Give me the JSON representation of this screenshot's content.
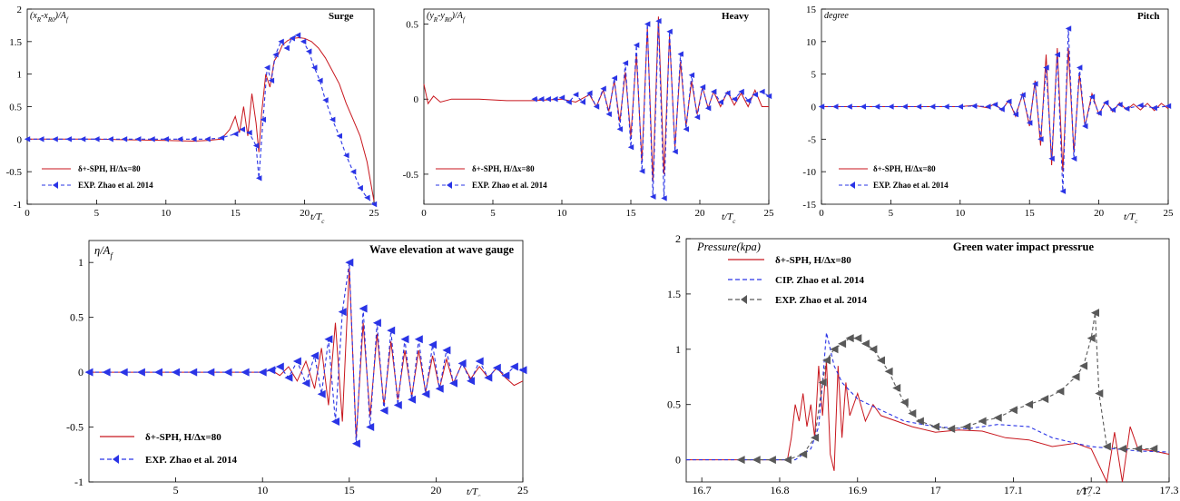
{
  "colors": {
    "sph": "#c8161d",
    "exp": "#2a34e6",
    "cip": "#2a34e6",
    "exp_gray": "#595959"
  },
  "chart_data": [
    {
      "type": "line",
      "title": "Surge",
      "ylabel": "(x_R-x_R0)/A_f",
      "xlabel": "t/T_c",
      "xlim": [
        0,
        25
      ],
      "ylim": [
        -1,
        2
      ],
      "xticks": [
        0,
        5,
        10,
        15,
        20,
        25
      ],
      "yticks": [
        -1,
        -0.5,
        0,
        0.5,
        1,
        1.5,
        2
      ],
      "legend_position": "bottom-left",
      "series": [
        {
          "name": "δ+-SPH, H/Δx=80",
          "style": "solid",
          "color": "#c8161d",
          "x": [
            0,
            5,
            10,
            12,
            13,
            14,
            14.6,
            15,
            15.3,
            15.6,
            15.9,
            16.2,
            16.5,
            16.7,
            16.9,
            17.2,
            17.5,
            17.8,
            18.1,
            18.4,
            18.8,
            19.2,
            19.6,
            20,
            20.5,
            21,
            21.5,
            22,
            22.5,
            23,
            23.5,
            24,
            24.5,
            25
          ],
          "y": [
            0,
            0,
            -0.02,
            -0.03,
            -0.02,
            0,
            0.15,
            0.35,
            0.1,
            0.5,
            0.05,
            0.7,
            0.25,
            -0.2,
            0.4,
            1.0,
            0.8,
            1.2,
            1.3,
            1.45,
            1.52,
            1.55,
            1.56,
            1.55,
            1.5,
            1.4,
            1.25,
            1.05,
            0.85,
            0.55,
            0.3,
            0.05,
            -0.35,
            -0.95
          ]
        },
        {
          "name": "EXP. Zhao et al. 2014",
          "style": "dash-triangle",
          "color": "#2a34e6",
          "x": [
            0,
            1,
            2,
            3,
            4,
            5,
            6,
            7,
            8,
            9,
            10,
            11,
            12,
            13,
            14,
            15,
            15.5,
            16,
            16.5,
            16.7,
            17,
            17.3,
            17.6,
            17.9,
            18.3,
            18.7,
            19.1,
            19.5,
            19.9,
            20.3,
            20.7,
            21.1,
            21.5,
            22,
            22.5,
            23,
            23.5,
            24,
            24.5,
            25
          ],
          "y": [
            0,
            0,
            0,
            0,
            0,
            0,
            0,
            0,
            0,
            0,
            0,
            0,
            0,
            0,
            0.02,
            0.08,
            0.15,
            0.1,
            -0.1,
            -0.6,
            0.3,
            1.1,
            0.9,
            1.3,
            1.5,
            1.4,
            1.55,
            1.6,
            1.5,
            1.35,
            1.1,
            0.9,
            0.6,
            0.3,
            0.05,
            -0.25,
            -0.5,
            -0.75,
            -0.9,
            -1.0
          ]
        }
      ]
    },
    {
      "type": "line",
      "title": "Heavy",
      "ylabel": "(y_R-y_R0)/A_f",
      "xlabel": "t/T_c",
      "xlim": [
        0,
        25
      ],
      "ylim": [
        -0.7,
        0.6
      ],
      "xticks": [
        0,
        5,
        10,
        15,
        20,
        25
      ],
      "yticks": [
        -0.5,
        0,
        0.5
      ],
      "legend_position": "bottom-left",
      "series": [
        {
          "name": "δ+-SPH, H/Δx=80",
          "style": "solid",
          "color": "#c8161d",
          "x": [
            0,
            0.3,
            0.7,
            1.2,
            2,
            4,
            6,
            8,
            10,
            11,
            12,
            12.5,
            13,
            13.4,
            13.8,
            14.2,
            14.6,
            15,
            15.4,
            15.8,
            16.2,
            16.6,
            17,
            17.4,
            17.8,
            18.2,
            18.6,
            19,
            19.4,
            19.8,
            20.2,
            20.6,
            21,
            21.5,
            22,
            22.5,
            23,
            23.5,
            24,
            24.5,
            25
          ],
          "y": [
            0.1,
            -0.03,
            0.02,
            -0.02,
            0,
            0,
            -0.01,
            -0.01,
            0,
            -0.02,
            0.03,
            -0.05,
            0.06,
            -0.08,
            0.12,
            -0.15,
            0.18,
            -0.25,
            0.3,
            -0.42,
            0.48,
            -0.55,
            0.55,
            -0.5,
            0.42,
            -0.32,
            0.25,
            -0.18,
            0.12,
            -0.1,
            0.08,
            -0.06,
            0.05,
            -0.05,
            0.05,
            -0.04,
            0.04,
            -0.05,
            0.06,
            -0.05,
            -0.05
          ]
        },
        {
          "name": "EXP. Zhao et al. 2014",
          "style": "dash-triangle",
          "color": "#2a34e6",
          "x": [
            8,
            8.5,
            9,
            9.5,
            10,
            10.5,
            11,
            11.5,
            12,
            12.5,
            13,
            13.4,
            13.8,
            14.2,
            14.6,
            15,
            15.4,
            15.8,
            16.2,
            16.6,
            17,
            17.4,
            17.8,
            18.2,
            18.6,
            19,
            19.4,
            19.8,
            20.2,
            20.6,
            21,
            21.5,
            22,
            22.5,
            23,
            23.5,
            24,
            24.5,
            25
          ],
          "y": [
            0,
            0,
            0,
            0,
            0.01,
            -0.02,
            0.03,
            -0.02,
            0.04,
            -0.05,
            0.07,
            -0.1,
            0.14,
            -0.2,
            0.24,
            -0.32,
            0.36,
            -0.48,
            0.5,
            -0.65,
            0.52,
            -0.66,
            0.45,
            -0.35,
            0.3,
            -0.2,
            0.16,
            -0.12,
            0.08,
            -0.06,
            0.05,
            -0.02,
            0.04,
            0,
            0.05,
            -0.01,
            0.03,
            0.05,
            0.02
          ]
        }
      ]
    },
    {
      "type": "line",
      "title": "Pitch",
      "ylabel": "degree",
      "xlabel": "t/T_c",
      "xlim": [
        0,
        25
      ],
      "ylim": [
        -15,
        15
      ],
      "xticks": [
        0,
        5,
        10,
        15,
        20,
        25
      ],
      "yticks": [
        -15,
        -10,
        -5,
        0,
        5,
        10,
        15
      ],
      "legend_position": "bottom-left",
      "series": [
        {
          "name": "δ+-SPH, H/Δx=80",
          "style": "solid",
          "color": "#c8161d",
          "x": [
            0,
            2,
            4,
            6,
            8,
            10,
            11,
            12,
            12.5,
            13,
            13.5,
            14,
            14.5,
            15,
            15.4,
            15.8,
            16.2,
            16.6,
            17,
            17.4,
            17.8,
            18.2,
            18.6,
            19,
            19.5,
            20,
            20.5,
            21,
            21.5,
            22,
            22.5,
            23,
            23.5,
            24,
            24.5,
            25
          ],
          "y": [
            0,
            0,
            0,
            0,
            0,
            0,
            0.2,
            -0.2,
            0.5,
            -0.6,
            1,
            -1.5,
            2,
            -3,
            4,
            -6,
            8,
            -9,
            9,
            -10,
            9,
            -7,
            5,
            -3,
            2,
            -1.2,
            0.8,
            -0.8,
            0.6,
            -0.5,
            0.4,
            -0.5,
            0.5,
            -0.6,
            0.5,
            -0.3
          ]
        },
        {
          "name": "EXP. Zhao et al. 2014",
          "style": "dash-triangle",
          "color": "#2a34e6",
          "x": [
            0,
            1,
            2,
            3,
            4,
            5,
            6,
            7,
            8,
            9,
            10,
            11,
            12,
            12.5,
            13,
            13.5,
            14,
            14.5,
            15,
            15.4,
            15.8,
            16.2,
            16.6,
            17,
            17.4,
            17.8,
            18.2,
            18.6,
            19,
            19.5,
            20,
            20.5,
            21,
            21.5,
            22,
            23,
            24,
            25
          ],
          "y": [
            0,
            0,
            0,
            0,
            0,
            0,
            0,
            0,
            0,
            0,
            0,
            0.1,
            0,
            0.3,
            -0.4,
            0.8,
            -1.2,
            1.8,
            -2.5,
            3.5,
            -5,
            6,
            -8,
            8,
            -13,
            12,
            -8,
            6,
            -3,
            1.5,
            -1,
            0.6,
            -0.5,
            0.3,
            -0.3,
            0.2,
            -0.2,
            0.1
          ]
        }
      ]
    },
    {
      "type": "line",
      "title": "Wave elevation at wave gauge",
      "ylabel": "η/A_f",
      "xlabel": "t/T_c",
      "xlim": [
        0,
        25
      ],
      "ylim": [
        -1,
        1.2
      ],
      "xticks": [
        5,
        10,
        15,
        20,
        25
      ],
      "yticks": [
        -1,
        -0.5,
        0,
        0.5,
        1
      ],
      "legend_position": "bottom-left",
      "series": [
        {
          "name": "δ+-SPH, H/Δx=80",
          "style": "solid",
          "color": "#c8161d",
          "x": [
            0,
            2,
            4,
            6,
            8,
            10,
            10.5,
            11,
            11.5,
            12,
            12.5,
            13,
            13.4,
            13.8,
            14.2,
            14.6,
            15,
            15.4,
            15.8,
            16.2,
            16.6,
            17,
            17.4,
            17.8,
            18.2,
            18.6,
            19,
            19.4,
            19.8,
            20.2,
            20.6,
            21,
            21.5,
            22,
            22.5,
            23,
            23.5,
            24,
            24.5,
            25
          ],
          "y": [
            0,
            0,
            0,
            0,
            0,
            0,
            0.02,
            -0.03,
            0.05,
            -0.08,
            0.1,
            -0.15,
            0.22,
            -0.3,
            0.45,
            -0.45,
            0.95,
            -0.6,
            0.45,
            -0.4,
            0.35,
            -0.3,
            0.28,
            -0.25,
            0.2,
            -0.22,
            0.2,
            -0.18,
            0.15,
            -0.15,
            0.12,
            -0.1,
            0.08,
            -0.06,
            0.05,
            -0.05,
            0.04,
            -0.05,
            -0.12,
            -0.08
          ]
        },
        {
          "name": "EXP. Zhao et al. 2014",
          "style": "dash-triangle",
          "color": "#2a34e6",
          "x": [
            0,
            1,
            2,
            3,
            4,
            5,
            6,
            7,
            8,
            9,
            10,
            10.5,
            11,
            11.5,
            12,
            12.5,
            13,
            13.4,
            13.8,
            14.2,
            14.6,
            15,
            15.4,
            15.8,
            16.2,
            16.6,
            17,
            17.4,
            17.8,
            18.2,
            18.6,
            19,
            19.4,
            19.8,
            20.2,
            20.6,
            21,
            21.5,
            22,
            22.5,
            23,
            23.5,
            24,
            24.5,
            25
          ],
          "y": [
            0,
            0,
            0,
            0,
            0,
            0,
            0,
            0,
            0,
            0,
            0,
            0.02,
            0.05,
            -0.05,
            0.1,
            -0.1,
            0.15,
            -0.2,
            0.3,
            -0.45,
            0.55,
            1.0,
            -0.65,
            0.58,
            -0.5,
            0.45,
            -0.35,
            0.38,
            -0.3,
            0.3,
            -0.25,
            0.3,
            -0.2,
            0.25,
            -0.15,
            0.2,
            -0.1,
            0.08,
            -0.08,
            0.1,
            -0.05,
            0.04,
            -0.03,
            0.05,
            0.02
          ]
        }
      ]
    },
    {
      "type": "line",
      "title": "Green water impact pressrue",
      "ylabel": "Pressure(kpa)",
      "xlabel": "t/T_c",
      "xlim": [
        16.68,
        17.3
      ],
      "ylim": [
        -0.2,
        2
      ],
      "xticks": [
        16.7,
        16.8,
        16.9,
        17,
        17.1,
        17.2,
        17.3
      ],
      "xtick_labels": [
        "16.7",
        "16.8",
        "16.9",
        "17",
        "17.1",
        "17.2",
        "17.3"
      ],
      "yticks": [
        0,
        0.5,
        1,
        1.5,
        2
      ],
      "legend_position": "top-left",
      "series": [
        {
          "name": "δ+-SPH, H/Δx=80",
          "style": "solid",
          "color": "#c8161d",
          "x": [
            16.68,
            16.81,
            16.815,
            16.82,
            16.825,
            16.83,
            16.835,
            16.84,
            16.845,
            16.85,
            16.855,
            16.86,
            16.865,
            16.87,
            16.875,
            16.88,
            16.885,
            16.89,
            16.9,
            16.91,
            16.92,
            16.93,
            16.95,
            16.97,
            17.0,
            17.03,
            17.06,
            17.09,
            17.12,
            17.15,
            17.18,
            17.2,
            17.22,
            17.23,
            17.24,
            17.25,
            17.26,
            17.28,
            17.3
          ],
          "y": [
            0,
            0,
            0.2,
            0.5,
            0.35,
            0.6,
            0.3,
            0.5,
            0.2,
            0.85,
            0.4,
            0.9,
            0.05,
            -0.1,
            0.85,
            0.2,
            0.7,
            0.4,
            0.6,
            0.35,
            0.5,
            0.4,
            0.35,
            0.3,
            0.25,
            0.27,
            0.26,
            0.2,
            0.18,
            0.12,
            0.15,
            0.1,
            -0.2,
            0.25,
            -0.2,
            0.3,
            0.1,
            0.08,
            0.05
          ]
        },
        {
          "name": "CIP. Zhao et al. 2014",
          "style": "dash",
          "color": "#2a34e6",
          "x": [
            16.68,
            16.82,
            16.84,
            16.85,
            16.855,
            16.86,
            16.87,
            16.88,
            16.9,
            16.93,
            16.96,
            17.0,
            17.04,
            17.08,
            17.12,
            17.15,
            17.18,
            17.2,
            17.23,
            17.26,
            17.3
          ],
          "y": [
            0,
            0,
            0.1,
            0.3,
            0.7,
            1.15,
            0.85,
            0.7,
            0.55,
            0.45,
            0.35,
            0.3,
            0.28,
            0.32,
            0.3,
            0.2,
            0.15,
            0.12,
            0.1,
            0.08,
            0.07
          ]
        },
        {
          "name": "EXP. Zhao et al. 2014",
          "style": "dash-triangle",
          "color": "#595959",
          "x": [
            16.75,
            16.77,
            16.79,
            16.81,
            16.83,
            16.845,
            16.855,
            16.86,
            16.87,
            16.88,
            16.89,
            16.9,
            16.91,
            16.92,
            16.93,
            16.94,
            16.95,
            16.96,
            16.97,
            16.98,
            17.0,
            17.02,
            17.04,
            17.06,
            17.08,
            17.1,
            17.12,
            17.14,
            17.16,
            17.18,
            17.19,
            17.2,
            17.205,
            17.21,
            17.22,
            17.24,
            17.26,
            17.28
          ],
          "y": [
            0,
            0,
            0,
            0,
            0.05,
            0.2,
            0.7,
            0.9,
            1.0,
            1.05,
            1.1,
            1.1,
            1.05,
            1.0,
            0.9,
            0.8,
            0.65,
            0.52,
            0.42,
            0.35,
            0.3,
            0.28,
            0.3,
            0.35,
            0.38,
            0.45,
            0.5,
            0.55,
            0.62,
            0.75,
            0.85,
            1.1,
            1.33,
            0.6,
            0.12,
            0.1,
            0.1,
            0.1
          ]
        }
      ]
    }
  ]
}
